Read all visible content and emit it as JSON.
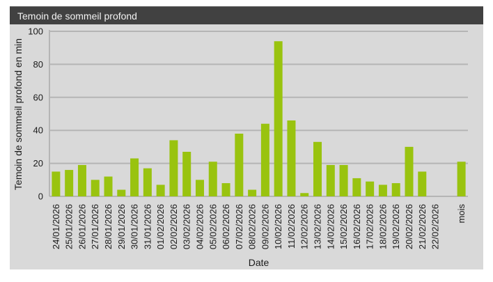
{
  "panel": {
    "title": "Temoin de sommeil profond"
  },
  "chart_data": {
    "type": "bar",
    "title": "Temoin de sommeil profond",
    "xlabel": "Date",
    "ylabel": "Temoin de sommeil profond en min",
    "ylim": [
      0,
      100
    ],
    "yticks": [
      0,
      20,
      40,
      60,
      80,
      100
    ],
    "grid": true,
    "legend": "none",
    "bar_color": "#99c30f",
    "grid_color": "#b5b5b5",
    "categories": [
      "24/01/2026",
      "25/01/2026",
      "26/01/2026",
      "27/01/2026",
      "28/01/2026",
      "29/01/2026",
      "30/01/2026",
      "31/01/2026",
      "01/02/2026",
      "02/02/2026",
      "03/02/2026",
      "04/02/2026",
      "05/02/2026",
      "06/02/2026",
      "07/02/2026",
      "08/02/2026",
      "09/02/2026",
      "10/02/2026",
      "11/02/2026",
      "12/02/2026",
      "13/02/2026",
      "14/02/2026",
      "15/02/2026",
      "16/02/2026",
      "17/02/2026",
      "18/02/2026",
      "19/02/2026",
      "20/02/2026",
      "21/02/2026",
      "22/02/2026",
      "",
      "mois"
    ],
    "values": [
      15,
      16,
      19,
      10,
      12,
      4,
      23,
      17,
      7,
      34,
      27,
      10,
      21,
      8,
      38,
      4,
      44,
      94,
      46,
      2,
      33,
      19,
      19,
      11,
      9,
      7,
      8,
      30,
      15,
      0,
      null,
      21
    ]
  }
}
